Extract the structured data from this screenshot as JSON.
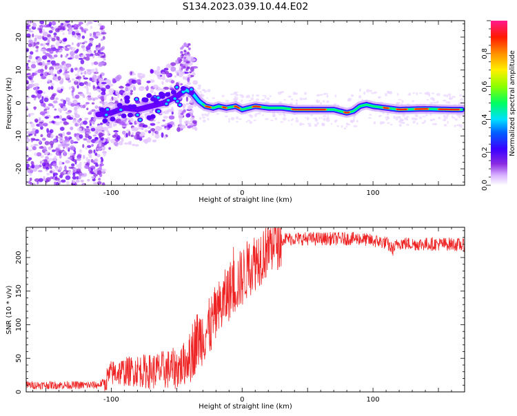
{
  "title": "S134.2023.039.10.44.E02",
  "chart_data": [
    {
      "type": "heatmap",
      "xlabel": "Height of straight line (km)",
      "ylabel": "Frequency (Hz)",
      "xlim": [
        -165,
        170
      ],
      "ylim": [
        -25,
        25
      ],
      "x_ticks": [
        -100,
        0,
        100
      ],
      "y_ticks": [
        -20,
        -10,
        0,
        10,
        20
      ],
      "colorbar": {
        "label": "Normalized spectral amplitude",
        "range": [
          0,
          1
        ],
        "ticks": [
          "0.0",
          "0.2",
          "0.4",
          "0.6",
          "0.8"
        ]
      },
      "ridge": [
        [
          -110,
          -3.5
        ],
        [
          -100,
          -3
        ],
        [
          -90,
          -1.5
        ],
        [
          -80,
          -2
        ],
        [
          -70,
          -1
        ],
        [
          -60,
          0
        ],
        [
          -50,
          2
        ],
        [
          -43,
          4
        ],
        [
          -38,
          3
        ],
        [
          -33,
          0.5
        ],
        [
          -28,
          -1
        ],
        [
          -22,
          -1.5
        ],
        [
          -18,
          -1
        ],
        [
          -12,
          -1.5
        ],
        [
          -5,
          -1
        ],
        [
          0,
          -2
        ],
        [
          10,
          -1
        ],
        [
          20,
          -1.5
        ],
        [
          30,
          -1.5
        ],
        [
          40,
          -2
        ],
        [
          50,
          -2
        ],
        [
          60,
          -2
        ],
        [
          70,
          -2
        ],
        [
          75,
          -2.5
        ],
        [
          80,
          -3
        ],
        [
          85,
          -2.5
        ],
        [
          90,
          -1
        ],
        [
          95,
          -0.5
        ],
        [
          100,
          -1
        ],
        [
          110,
          -1.5
        ],
        [
          120,
          -2
        ],
        [
          140,
          -1.8
        ],
        [
          160,
          -2
        ],
        [
          168,
          -2
        ]
      ]
    },
    {
      "type": "line",
      "xlabel": "Height of straight line (km)",
      "ylabel": "SNR (10 * v/v)",
      "xlim": [
        -165,
        170
      ],
      "ylim": [
        0,
        245
      ],
      "x_ticks": [
        -100,
        0,
        100
      ],
      "y_ticks": [
        0,
        50,
        100,
        150,
        200
      ],
      "color": "#ee2222",
      "series": [
        {
          "x": [
            -165,
            -150,
            -140,
            -130,
            -120,
            -110,
            -105,
            -100,
            -90,
            -80,
            -70,
            -60,
            -50,
            -45,
            -40,
            -35,
            -30,
            -25,
            -20,
            -15,
            -10,
            -5,
            0,
            5,
            10,
            15,
            20,
            25,
            30,
            40,
            50,
            60,
            70,
            80,
            90,
            100,
            110,
            115,
            120,
            130,
            140,
            150,
            160,
            170
          ],
          "y": [
            10,
            10,
            10,
            10,
            10,
            10,
            15,
            28,
            30,
            32,
            30,
            33,
            35,
            40,
            55,
            75,
            85,
            95,
            115,
            130,
            150,
            160,
            170,
            185,
            195,
            205,
            215,
            225,
            228,
            228,
            228,
            228,
            228,
            228,
            228,
            225,
            222,
            212,
            222,
            220,
            220,
            220,
            220,
            218
          ]
        }
      ]
    }
  ]
}
